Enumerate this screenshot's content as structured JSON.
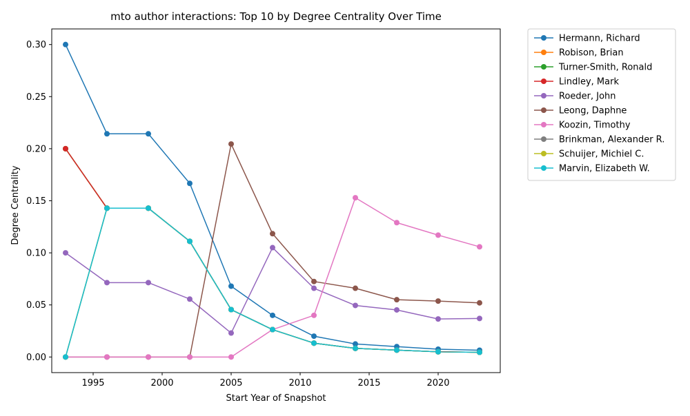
{
  "chart_data": {
    "type": "line",
    "title": "mto author interactions: Top 10 by Degree Centrality Over Time",
    "xlabel": "Start Year of Snapshot",
    "ylabel": "Degree Centrality",
    "xlim": [
      1992.0,
      2024.5
    ],
    "ylim": [
      -0.015,
      0.315
    ],
    "xticks": [
      1995,
      2000,
      2005,
      2010,
      2015,
      2020
    ],
    "yticks": [
      0.0,
      0.05,
      0.1,
      0.15,
      0.2,
      0.25,
      0.3
    ],
    "ytick_labels": [
      "0.00",
      "0.05",
      "0.10",
      "0.15",
      "0.20",
      "0.25",
      "0.30"
    ],
    "grid": false,
    "legend_position": "outside-right",
    "x": [
      1993,
      1996,
      1999,
      2002,
      2005,
      2008,
      2011,
      2014,
      2017,
      2020,
      2023
    ],
    "series": [
      {
        "name": "Hermann, Richard",
        "color": "#1f77b4",
        "values": [
          0.3,
          0.2143,
          0.2143,
          0.1667,
          0.068,
          0.04,
          0.02,
          0.0125,
          0.01,
          0.0075,
          0.0065
        ]
      },
      {
        "name": "Robison, Brian",
        "color": "#ff7f0e",
        "values": [
          0.2,
          0.1429,
          0.1429,
          0.1111,
          0.0455,
          0.0263,
          0.0133,
          0.0083,
          0.0066,
          0.005,
          0.0045
        ]
      },
      {
        "name": "Turner-Smith, Ronald",
        "color": "#2ca02c",
        "values": [
          0.2,
          0.1429,
          0.1429,
          0.1111,
          0.0455,
          0.0263,
          0.0133,
          0.0083,
          0.0066,
          0.005,
          0.0045
        ]
      },
      {
        "name": "Lindley, Mark",
        "color": "#d62728",
        "values": [
          0.2,
          0.1429,
          0.1429,
          0.1111,
          0.0455,
          0.0263,
          0.0133,
          0.0083,
          0.0066,
          0.005,
          0.0045
        ]
      },
      {
        "name": "Roeder, John",
        "color": "#9467bd",
        "values": [
          0.1,
          0.0714,
          0.0714,
          0.0556,
          0.023,
          0.105,
          0.066,
          0.0495,
          0.0452,
          0.0365,
          0.037
        ]
      },
      {
        "name": "Leong, Daphne",
        "color": "#8c564b",
        "values": [
          0.0,
          0.0,
          0.0,
          0.0,
          0.2045,
          0.1184,
          0.0725,
          0.066,
          0.055,
          0.0537,
          0.052
        ]
      },
      {
        "name": "Koozin, Timothy",
        "color": "#e377c2",
        "values": [
          0.0,
          0.0,
          0.0,
          0.0,
          0.0,
          0.0263,
          0.04,
          0.1529,
          0.129,
          0.117,
          0.1058
        ]
      },
      {
        "name": "Brinkman, Alexander R.",
        "color": "#7f7f7f",
        "values": [
          0.0,
          0.1429,
          0.1429,
          0.1111,
          0.0455,
          0.0263,
          0.0133,
          0.0083,
          0.0066,
          0.005,
          0.0045
        ]
      },
      {
        "name": "Schuijer, Michiel C.",
        "color": "#bcbd22",
        "values": [
          0.0,
          0.1429,
          0.1429,
          0.1111,
          0.0455,
          0.0263,
          0.0133,
          0.0083,
          0.0066,
          0.005,
          0.0045
        ]
      },
      {
        "name": "Marvin, Elizabeth W.",
        "color": "#17becf",
        "values": [
          0.0,
          0.1429,
          0.1429,
          0.1111,
          0.0455,
          0.0263,
          0.0133,
          0.0083,
          0.0066,
          0.005,
          0.0045
        ]
      }
    ]
  }
}
